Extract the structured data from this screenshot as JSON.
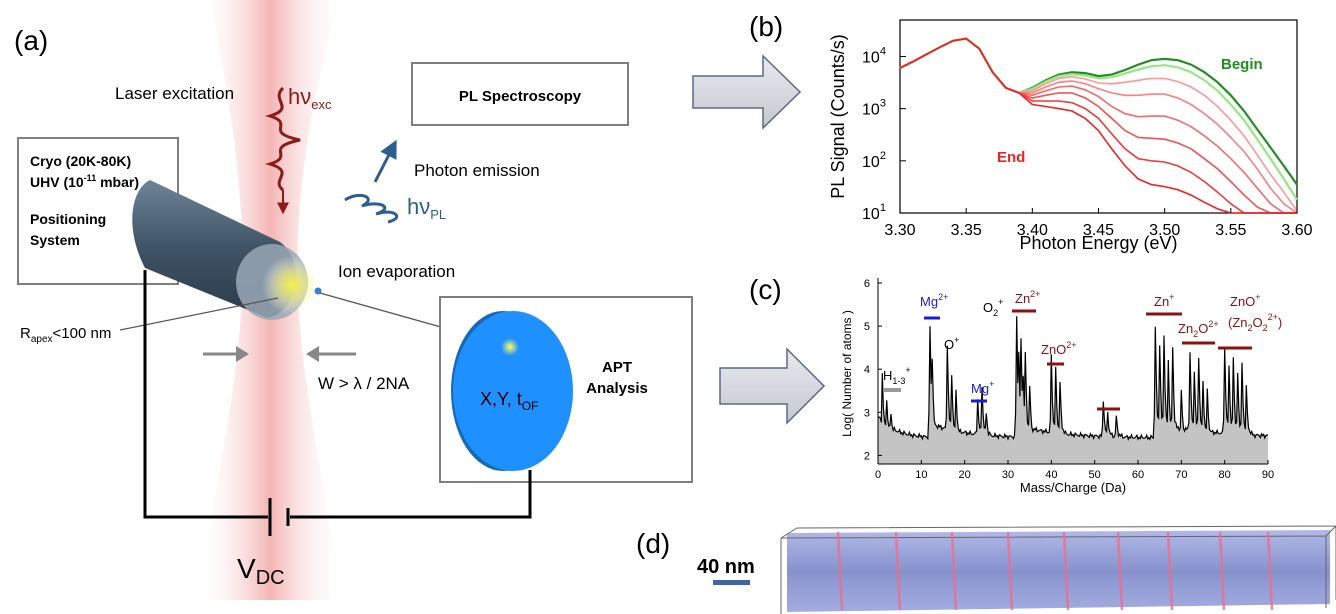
{
  "panels": {
    "a": {
      "label": "(a)",
      "laser_excitation": "Laser excitation",
      "hv_exc_main": "hν",
      "hv_exc_sub": "exc",
      "pl_spectroscopy": "PL Spectroscopy",
      "photon_emission": "Photon emission",
      "hv_pl_main": "hν",
      "hv_pl_sub": "PL",
      "cryo_line1": "Cryo (20K-80K)",
      "cryo_line2_main": "UHV (10",
      "cryo_line2_sup": "-11",
      "cryo_line2_end": " mbar)",
      "positioning_line1": "Positioning",
      "positioning_line2": "System",
      "ion_evaporation": "Ion evaporation",
      "rapex_main": "R",
      "rapex_sub": "apex",
      "rapex_end": "<100 nm",
      "width_condition": "W > λ / 2NA",
      "xyt_main": "X,Y, t",
      "xyt_sub": "OF",
      "apt_line1": "APT",
      "apt_line2": "Analysis",
      "vdc_main": "V",
      "vdc_sub": "DC"
    },
    "b": {
      "label": "(b)",
      "begin": "Begin",
      "end": "End"
    },
    "c": {
      "label": "(c)",
      "h_main": "H",
      "h_sub": "1-3",
      "h_sup": "+",
      "mg2_main": "Mg",
      "mg2_sup": "2+",
      "o_main": "O",
      "o_sup": "+",
      "o2_main": "O",
      "o2_sub": "2",
      "o2_sup": "+",
      "zn2_main": "Zn",
      "zn2_sup": "2+",
      "mg1_main": "Mg",
      "mg1_sup": "+",
      "zno2_main": "ZnO",
      "zno2_sup": "2+",
      "zn1_main": "Zn",
      "zn1_sup": "+",
      "zn2o_a": "Zn",
      "zn2o_sub": "2",
      "zn2o_b": "O",
      "zn2o_sup": "2+",
      "zno1_main": "ZnO",
      "zno1_sup": "+",
      "zn2o2_a": "(Zn",
      "zn2o2_sub1": "2",
      "zn2o2_b": "O",
      "zn2o2_sub2": "2",
      "zn2o2_sup": "2+",
      "zn2o2_c": ")"
    },
    "d": {
      "label": "(d)",
      "scale_bar": "40 nm"
    }
  },
  "colors": {
    "laser_beam": "#f3b8b8",
    "exc_wave": "#8b1a1a",
    "pl_wave": "#2e5d8f",
    "detector": "#1e90ff",
    "cryo_cone": "#3f5366",
    "mg_label": "#1a1adb",
    "zn_label": "#8b1010",
    "begin_green": "#1f8f1f",
    "end_red": "#ee2222",
    "atom_probe": "#7a86c8"
  },
  "chart_data": [
    {
      "type": "line",
      "panel": "b",
      "xlabel": "Photon Energy (eV)",
      "ylabel": "PL Signal (Counts/s)",
      "xlim": [
        3.3,
        3.6
      ],
      "ylim": [
        10,
        50000
      ],
      "yscale": "log",
      "x_ticks": [
        "3.30",
        "3.35",
        "3.40",
        "3.45",
        "3.50",
        "3.55",
        "3.60"
      ],
      "y_ticks": [
        {
          "base": "10",
          "exp": "1"
        },
        {
          "base": "10",
          "exp": "2"
        },
        {
          "base": "10",
          "exp": "3"
        },
        {
          "base": "10",
          "exp": "4"
        }
      ],
      "legend": [
        "Begin",
        "End"
      ],
      "grid": false,
      "x": [
        3.3,
        3.31,
        3.32,
        3.33,
        3.34,
        3.35,
        3.36,
        3.37,
        3.38,
        3.39,
        3.4,
        3.41,
        3.42,
        3.43,
        3.44,
        3.45,
        3.46,
        3.47,
        3.48,
        3.49,
        3.5,
        3.51,
        3.52,
        3.53,
        3.54,
        3.55,
        3.56,
        3.57,
        3.58,
        3.59,
        3.6
      ],
      "series": [
        {
          "values": [
            6000,
            8000,
            11000,
            15000,
            20000,
            22000,
            14000,
            5000,
            2500,
            2000,
            2500,
            3500,
            4500,
            5000,
            4800,
            4200,
            4500,
            5500,
            7000,
            8500,
            9000,
            8500,
            7000,
            5000,
            3200,
            1800,
            900,
            400,
            180,
            80,
            35
          ]
        },
        {
          "values": [
            6000,
            8000,
            11000,
            15000,
            20000,
            22000,
            14000,
            5000,
            2500,
            2000,
            2400,
            3300,
            4200,
            4600,
            4300,
            3800,
            4000,
            4700,
            5600,
            6500,
            6800,
            6200,
            5000,
            3500,
            2200,
            1200,
            600,
            260,
            110,
            45,
            18
          ]
        },
        {
          "values": [
            6000,
            8000,
            11000,
            15000,
            20000,
            22000,
            14000,
            5000,
            2500,
            2000,
            2200,
            3000,
            3800,
            4100,
            3700,
            3100,
            3000,
            3200,
            3500,
            3800,
            3800,
            3300,
            2600,
            1800,
            1100,
            600,
            300,
            130,
            55,
            25,
            11
          ]
        },
        {
          "values": [
            6000,
            8000,
            11000,
            15000,
            20000,
            22000,
            14000,
            5000,
            2500,
            2000,
            2000,
            2600,
            3200,
            3400,
            3000,
            2400,
            2000,
            1800,
            1800,
            1900,
            1900,
            1600,
            1200,
            800,
            500,
            280,
            150,
            70,
            30,
            15,
            10
          ]
        },
        {
          "values": [
            6000,
            8000,
            11000,
            15000,
            20000,
            22000,
            14000,
            5000,
            2500,
            2000,
            1800,
            2200,
            2600,
            2700,
            2300,
            1700,
            1100,
            800,
            700,
            720,
            720,
            600,
            450,
            300,
            190,
            110,
            60,
            30,
            15,
            10,
            10
          ]
        },
        {
          "values": [
            6000,
            8000,
            11000,
            15000,
            20000,
            22000,
            14000,
            5000,
            2500,
            2000,
            1600,
            1800,
            2000,
            2000,
            1600,
            1100,
            650,
            380,
            280,
            270,
            260,
            220,
            170,
            110,
            70,
            40,
            22,
            13,
            10,
            10,
            10
          ]
        },
        {
          "values": [
            6000,
            8000,
            11000,
            15000,
            20000,
            22000,
            14000,
            5000,
            2500,
            2000,
            1400,
            1400,
            1400,
            1300,
            1000,
            650,
            330,
            170,
            110,
            100,
            95,
            80,
            60,
            40,
            25,
            15,
            10,
            10,
            10,
            10,
            10
          ]
        },
        {
          "values": [
            6000,
            8000,
            11000,
            15000,
            20000,
            22000,
            14000,
            5000,
            2500,
            2000,
            1200,
            1100,
            1000,
            900,
            650,
            380,
            170,
            80,
            45,
            35,
            32,
            28,
            22,
            16,
            12,
            10,
            10,
            10,
            10,
            10,
            10
          ]
        }
      ]
    },
    {
      "type": "area",
      "panel": "c",
      "xlabel": "Mass/Charge (Da)",
      "ylabel": "Log( Number of atoms )",
      "xlim": [
        0,
        90
      ],
      "ylim": [
        1.8,
        6
      ],
      "x_ticks": [
        "0",
        "10",
        "20",
        "30",
        "40",
        "50",
        "60",
        "70",
        "80",
        "90"
      ],
      "y_ticks": [
        "2",
        "3",
        "4",
        "5",
        "6"
      ],
      "baseline": 2.4,
      "peaks": [
        {
          "x": 1,
          "y": 3.9
        },
        {
          "x": 2,
          "y": 3.3
        },
        {
          "x": 3,
          "y": 3.0
        },
        {
          "x": 12,
          "y": 5.0
        },
        {
          "x": 12.5,
          "y": 4.3
        },
        {
          "x": 16,
          "y": 4.6
        },
        {
          "x": 17,
          "y": 3.9
        },
        {
          "x": 18,
          "y": 3.5
        },
        {
          "x": 23,
          "y": 3.3
        },
        {
          "x": 24,
          "y": 3.6
        },
        {
          "x": 25,
          "y": 3.0
        },
        {
          "x": 32,
          "y": 5.2
        },
        {
          "x": 32.5,
          "y": 4.4
        },
        {
          "x": 33,
          "y": 4.7
        },
        {
          "x": 33.5,
          "y": 3.9
        },
        {
          "x": 34,
          "y": 4.4
        },
        {
          "x": 35,
          "y": 3.6
        },
        {
          "x": 40,
          "y": 4.3
        },
        {
          "x": 41,
          "y": 4.0
        },
        {
          "x": 42,
          "y": 3.7
        },
        {
          "x": 52,
          "y": 3.3
        },
        {
          "x": 53,
          "y": 3.0
        },
        {
          "x": 55,
          "y": 2.9
        },
        {
          "x": 64,
          "y": 5.0
        },
        {
          "x": 65,
          "y": 4.6
        },
        {
          "x": 66,
          "y": 4.8
        },
        {
          "x": 67,
          "y": 4.2
        },
        {
          "x": 68,
          "y": 4.5
        },
        {
          "x": 70,
          "y": 3.5
        },
        {
          "x": 72,
          "y": 4.4
        },
        {
          "x": 73,
          "y": 4.0
        },
        {
          "x": 74,
          "y": 4.3
        },
        {
          "x": 75,
          "y": 3.7
        },
        {
          "x": 76,
          "y": 3.5
        },
        {
          "x": 80,
          "y": 4.5
        },
        {
          "x": 81,
          "y": 4.1
        },
        {
          "x": 82,
          "y": 4.3
        },
        {
          "x": 83,
          "y": 3.9
        },
        {
          "x": 84,
          "y": 4.1
        },
        {
          "x": 85,
          "y": 3.6
        }
      ]
    }
  ]
}
